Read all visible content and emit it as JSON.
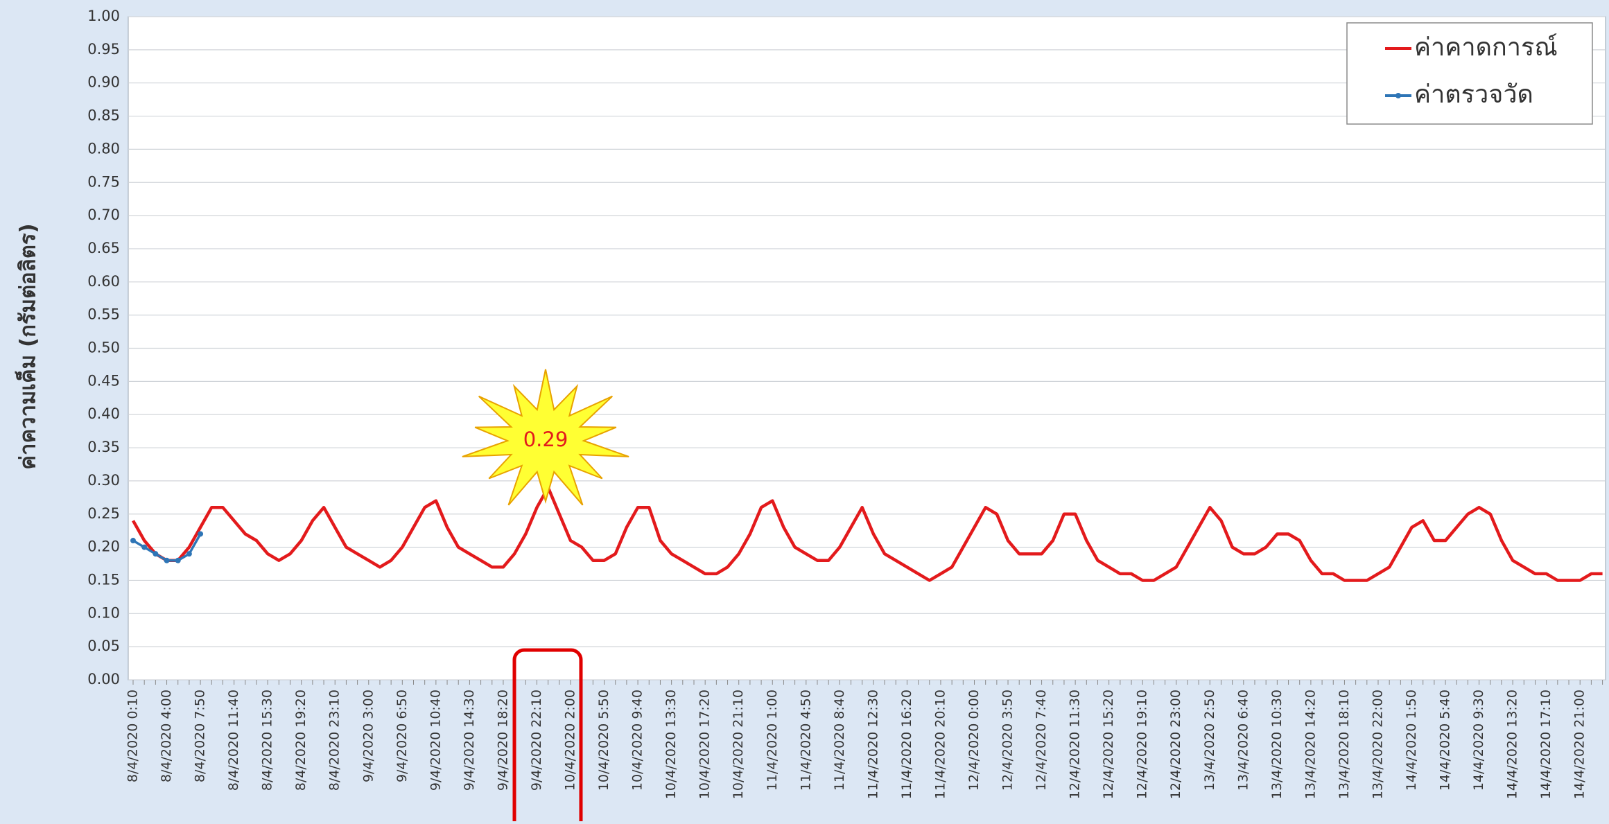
{
  "chart_data": {
    "type": "line",
    "y_label": "ค่าความเค็ม (กรัมต่อลิตร)",
    "ylim": [
      0,
      1
    ],
    "yticks": [
      {
        "value": 0,
        "label": "0.00"
      },
      {
        "value": 0.05,
        "label": "0.05"
      },
      {
        "value": 0.1,
        "label": "0.10"
      },
      {
        "value": 0.15,
        "label": "0.15"
      },
      {
        "value": 0.2,
        "label": "0.20"
      },
      {
        "value": 0.25,
        "label": "0.25"
      },
      {
        "value": 0.3,
        "label": "0.30"
      },
      {
        "value": 0.35,
        "label": "0.35"
      },
      {
        "value": 0.4,
        "label": "0.40"
      },
      {
        "value": 0.45,
        "label": "0.45"
      },
      {
        "value": 0.5,
        "label": "0.50"
      },
      {
        "value": 0.55,
        "label": "0.55"
      },
      {
        "value": 0.6,
        "label": "0.60"
      },
      {
        "value": 0.65,
        "label": "0.65"
      },
      {
        "value": 0.7,
        "label": "0.70"
      },
      {
        "value": 0.75,
        "label": "0.75"
      },
      {
        "value": 0.8,
        "label": "0.80"
      },
      {
        "value": 0.85,
        "label": "0.85"
      },
      {
        "value": 0.9,
        "label": "0.90"
      },
      {
        "value": 0.95,
        "label": "0.95"
      },
      {
        "value": 1,
        "label": "1.00"
      }
    ],
    "grid": true,
    "legend": "top-right",
    "categories": [
      "8/4/2020 0:10",
      null,
      null,
      "8/4/2020 4:00",
      null,
      null,
      "8/4/2020 7:50",
      null,
      null,
      "8/4/2020 11:40",
      null,
      null,
      "8/4/2020 15:30",
      null,
      null,
      "8/4/2020 19:20",
      null,
      null,
      "8/4/2020 23:10",
      null,
      null,
      "9/4/2020 3:00",
      null,
      null,
      "9/4/2020 6:50",
      null,
      null,
      "9/4/2020 10:40",
      null,
      null,
      "9/4/2020 14:30",
      null,
      null,
      "9/4/2020 18:20",
      null,
      null,
      "9/4/2020 22:10",
      null,
      null,
      "10/4/2020 2:00",
      null,
      null,
      "10/4/2020 5:50",
      null,
      null,
      "10/4/2020 9:40",
      null,
      null,
      "10/4/2020 13:30",
      null,
      null,
      "10/4/2020 17:20",
      null,
      null,
      "10/4/2020 21:10",
      null,
      null,
      "11/4/2020 1:00",
      null,
      null,
      "11/4/2020 4:50",
      null,
      null,
      "11/4/2020 8:40",
      null,
      null,
      "11/4/2020 12:30",
      null,
      null,
      "11/4/2020 16:20",
      null,
      null,
      "11/4/2020 20:10",
      null,
      null,
      "12/4/2020 0:00",
      null,
      null,
      "12/4/2020 3:50",
      null,
      null,
      "12/4/2020 7:40",
      null,
      null,
      "12/4/2020 11:30",
      null,
      null,
      "12/4/2020 15:20",
      null,
      null,
      "12/4/2020 19:10",
      null,
      null,
      "12/4/2020 23:00",
      null,
      null,
      "13/4/2020 2:50",
      null,
      null,
      "13/4/2020 6:40",
      null,
      null,
      "13/4/2020 10:30",
      null,
      null,
      "13/4/2020 14:20",
      null,
      null,
      "13/4/2020 18:10",
      null,
      null,
      "13/4/2020 22:00",
      null,
      null,
      "14/4/2020 1:50",
      null,
      null,
      "14/4/2020 5:40",
      null,
      null,
      "14/4/2020 9:30",
      null,
      null,
      "14/4/2020 13:20",
      null,
      null,
      "14/4/2020 17:10",
      null,
      null,
      "14/4/2020 21:00",
      null,
      null
    ],
    "series": [
      {
        "name": "ค่าคาดการณ์",
        "color": "#e31a1c",
        "values": [
          0.24,
          0.21,
          0.19,
          0.18,
          0.18,
          0.2,
          0.23,
          0.26,
          0.26,
          0.24,
          0.22,
          0.21,
          0.19,
          0.18,
          0.19,
          0.21,
          0.24,
          0.26,
          0.23,
          0.2,
          0.19,
          0.18,
          0.17,
          0.18,
          0.2,
          0.23,
          0.26,
          0.27,
          0.23,
          0.2,
          0.19,
          0.18,
          0.17,
          0.17,
          0.19,
          0.22,
          0.26,
          0.29,
          0.25,
          0.21,
          0.2,
          0.18,
          0.18,
          0.19,
          0.23,
          0.26,
          0.26,
          0.21,
          0.19,
          0.18,
          0.17,
          0.16,
          0.16,
          0.17,
          0.19,
          0.22,
          0.26,
          0.27,
          0.23,
          0.2,
          0.19,
          0.18,
          0.18,
          0.2,
          0.23,
          0.26,
          0.22,
          0.19,
          0.18,
          0.17,
          0.16,
          0.15,
          0.16,
          0.17,
          0.2,
          0.23,
          0.26,
          0.25,
          0.21,
          0.19,
          0.19,
          0.19,
          0.21,
          0.25,
          0.25,
          0.21,
          0.18,
          0.17,
          0.16,
          0.16,
          0.15,
          0.15,
          0.16,
          0.17,
          0.2,
          0.23,
          0.26,
          0.24,
          0.2,
          0.19,
          0.19,
          0.2,
          0.22,
          0.22,
          0.21,
          0.18,
          0.16,
          0.16,
          0.15,
          0.15,
          0.15,
          0.16,
          0.17,
          0.2,
          0.23,
          0.24,
          0.21,
          0.21,
          0.23,
          0.25,
          0.26,
          0.25,
          0.21,
          0.18,
          0.17,
          0.16,
          0.16,
          0.15,
          0.15,
          0.15,
          0.16,
          0.16
        ]
      },
      {
        "name": "ค่าตรวจวัด",
        "color": "#2e75b6",
        "marker": true,
        "values": [
          0.21,
          0.2,
          0.19,
          0.18,
          0.18,
          0.19,
          0.22,
          null,
          null,
          null,
          null,
          null,
          null,
          null,
          null,
          null,
          null,
          null,
          null,
          null,
          null,
          null,
          null,
          null,
          null,
          null,
          null,
          null,
          null,
          null,
          null,
          null,
          null,
          null,
          null,
          null,
          null,
          null,
          null,
          null,
          null,
          null,
          null,
          null,
          null,
          null,
          null,
          null,
          null,
          null,
          null,
          null,
          null,
          null,
          null,
          null,
          null,
          null,
          null,
          null,
          null,
          null,
          null,
          null,
          null,
          null,
          null,
          null,
          null,
          null,
          null,
          null,
          null,
          null,
          null,
          null,
          null,
          null,
          null,
          null,
          null,
          null,
          null,
          null,
          null,
          null,
          null,
          null,
          null,
          null,
          null,
          null,
          null,
          null,
          null,
          null,
          null,
          null,
          null,
          null,
          null,
          null,
          null,
          null,
          null,
          null,
          null,
          null,
          null,
          null,
          null,
          null,
          null,
          null,
          null,
          null,
          null,
          null,
          null,
          null,
          null,
          null,
          null,
          null,
          null,
          null,
          null,
          null,
          null,
          null,
          null,
          null
        ]
      }
    ],
    "annotations": [
      {
        "text": "0.29",
        "color": "#e31a1c"
      }
    ]
  }
}
